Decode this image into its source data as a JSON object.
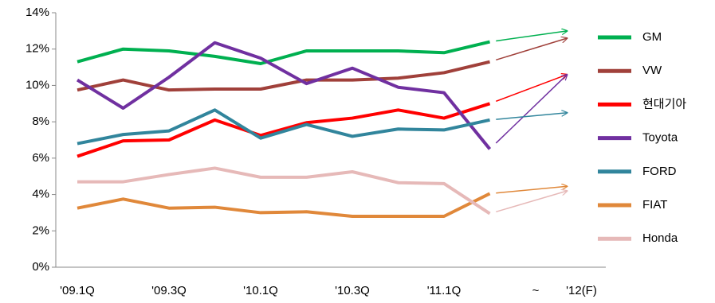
{
  "chart_data": {
    "type": "line",
    "categories": [
      "'09.1Q",
      null,
      "'09.3Q",
      null,
      "'10.1Q",
      null,
      "'10.3Q",
      null,
      "'11.1Q",
      null,
      "~",
      "'12(F)"
    ],
    "ylim": [
      0,
      14
    ],
    "yticks": [
      {
        "value": 0,
        "label": "0%"
      },
      {
        "value": 2,
        "label": "2%"
      },
      {
        "value": 4,
        "label": "4%"
      },
      {
        "value": 6,
        "label": "6%"
      },
      {
        "value": 8,
        "label": "8%"
      },
      {
        "value": 10,
        "label": "10%"
      },
      {
        "value": 12,
        "label": "12%"
      },
      {
        "value": 14,
        "label": "14%"
      }
    ],
    "series": [
      {
        "name": "GM",
        "color": "#00b050",
        "values": [
          11.3,
          12.0,
          11.9,
          11.6,
          11.2,
          11.9,
          11.9,
          11.9,
          11.8,
          12.4,
          null,
          13.0
        ]
      },
      {
        "name": "VW",
        "color": "#a0403a",
        "values": [
          9.75,
          10.3,
          9.75,
          9.8,
          9.8,
          10.3,
          10.3,
          10.4,
          10.7,
          11.3,
          null,
          12.6
        ]
      },
      {
        "name": "현대기아",
        "color": "#ff0000",
        "values": [
          6.1,
          6.95,
          7.0,
          8.1,
          7.25,
          7.95,
          8.2,
          8.65,
          8.2,
          9.0,
          null,
          10.6
        ]
      },
      {
        "name": "Toyota",
        "color": "#7030a0",
        "values": [
          10.3,
          8.75,
          10.45,
          12.35,
          11.5,
          10.1,
          10.95,
          9.9,
          9.6,
          6.5,
          null,
          10.6
        ]
      },
      {
        "name": "FORD",
        "color": "#31859c",
        "values": [
          6.8,
          7.3,
          7.5,
          8.65,
          7.1,
          7.85,
          7.2,
          7.6,
          7.55,
          8.1,
          null,
          8.5
        ]
      },
      {
        "name": "FIAT",
        "color": "#e0883a",
        "values": [
          3.25,
          3.75,
          3.25,
          3.3,
          3.0,
          3.05,
          2.8,
          2.8,
          2.8,
          4.05,
          null,
          4.45
        ]
      },
      {
        "name": "Honda",
        "color": "#e6b9b8",
        "values": [
          4.7,
          4.7,
          5.1,
          5.45,
          4.95,
          4.95,
          5.25,
          4.65,
          4.6,
          2.95,
          null,
          4.2
        ]
      }
    ]
  }
}
